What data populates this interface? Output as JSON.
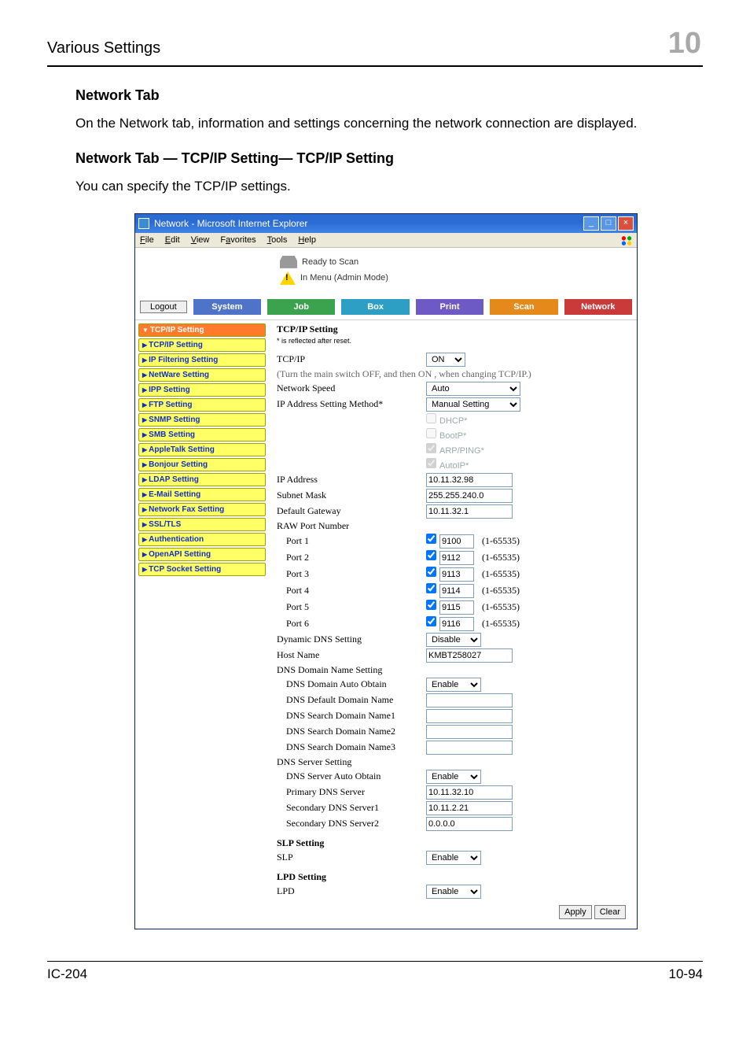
{
  "page": {
    "section": "Various Settings",
    "chapter_number_bg": "10",
    "left_footer": "IC-204",
    "right_footer": "10-94"
  },
  "doc": {
    "h1": "Network Tab",
    "p1": "On the Network tab, information and settings concerning the network connection are displayed.",
    "h2": "Network Tab — TCP/IP Setting— TCP/IP Setting",
    "p2": "You can specify the TCP/IP settings."
  },
  "browser": {
    "title": "Network - Microsoft Internet Explorer",
    "menu": {
      "file": "File",
      "edit": "Edit",
      "view": "View",
      "favorites": "Favorites",
      "tools": "Tools",
      "help": "Help"
    },
    "winbtns": {
      "min": "_",
      "max": "□",
      "close": "×"
    }
  },
  "status": {
    "ready": "Ready to Scan",
    "mode": "In Menu (Admin Mode)"
  },
  "nav": {
    "logout": "Logout",
    "tabs": {
      "system": "System",
      "job": "Job",
      "box": "Box",
      "print": "Print",
      "scan": "Scan",
      "network": "Network"
    }
  },
  "sidebar": {
    "items": [
      {
        "label": "TCP/IP Setting",
        "active": true
      },
      {
        "label": "TCP/IP Setting"
      },
      {
        "label": "IP Filtering Setting"
      },
      {
        "label": "NetWare Setting"
      },
      {
        "label": "IPP Setting"
      },
      {
        "label": "FTP Setting"
      },
      {
        "label": "SNMP Setting"
      },
      {
        "label": "SMB Setting"
      },
      {
        "label": "AppleTalk Setting"
      },
      {
        "label": "Bonjour Setting"
      },
      {
        "label": "LDAP Setting"
      },
      {
        "label": "E-Mail Setting"
      },
      {
        "label": "Network Fax Setting"
      },
      {
        "label": "SSL/TLS"
      },
      {
        "label": "Authentication"
      },
      {
        "label": "OpenAPI Setting"
      },
      {
        "label": "TCP Socket Setting"
      }
    ]
  },
  "form": {
    "heading": "TCP/IP Setting",
    "note": "* is reflected after reset.",
    "tcpip_label": "TCP/IP",
    "tcpip_value": "ON",
    "switch_hint": "(Turn the main switch OFF, and then ON , when changing TCP/IP.)",
    "netspeed_label": "Network Speed",
    "netspeed_value": "Auto",
    "ipmethod_label": "IP Address Setting Method*",
    "ipmethod_value": "Manual Setting",
    "dhcp": "DHCP*",
    "bootp": "BootP*",
    "arp": "ARP/PING*",
    "autoip": "AutoIP*",
    "ipaddr_label": "IP Address",
    "ipaddr_value": "10.11.32.98",
    "subnet_label": "Subnet Mask",
    "subnet_value": "255.255.240.0",
    "gateway_label": "Default Gateway",
    "gateway_value": "10.11.32.1",
    "raw_label": "RAW Port Number",
    "ports": [
      {
        "label": "Port 1",
        "value": "9100"
      },
      {
        "label": "Port 2",
        "value": "9112"
      },
      {
        "label": "Port 3",
        "value": "9113"
      },
      {
        "label": "Port 4",
        "value": "9114"
      },
      {
        "label": "Port 5",
        "value": "9115"
      },
      {
        "label": "Port 6",
        "value": "9116"
      }
    ],
    "port_range": "(1-65535)",
    "dyn_dns_label": "Dynamic DNS Setting",
    "dyn_dns_value": "Disable",
    "host_label": "Host Name",
    "host_value": "KMBT258027",
    "dns_domain_heading": "DNS Domain Name Setting",
    "dns_domain_auto_label": "DNS Domain Auto Obtain",
    "dns_domain_auto_value": "Enable",
    "dns_default_label": "DNS Default Domain Name",
    "dns_search1_label": "DNS Search Domain Name1",
    "dns_search2_label": "DNS Search Domain Name2",
    "dns_search3_label": "DNS Search Domain Name3",
    "dns_server_heading": "DNS Server Setting",
    "dns_server_auto_label": "DNS Server Auto Obtain",
    "dns_server_auto_value": "Enable",
    "primary_dns_label": "Primary DNS Server",
    "primary_dns_value": "10.11.32.10",
    "sec1_dns_label": "Secondary DNS Server1",
    "sec1_dns_value": "10.11.2.21",
    "sec2_dns_label": "Secondary DNS Server2",
    "sec2_dns_value": "0.0.0.0",
    "slp_heading": "SLP Setting",
    "slp_label": "SLP",
    "slp_value": "Enable",
    "lpd_heading": "LPD Setting",
    "lpd_label": "LPD",
    "lpd_value": "Enable",
    "apply": "Apply",
    "clear": "Clear"
  }
}
